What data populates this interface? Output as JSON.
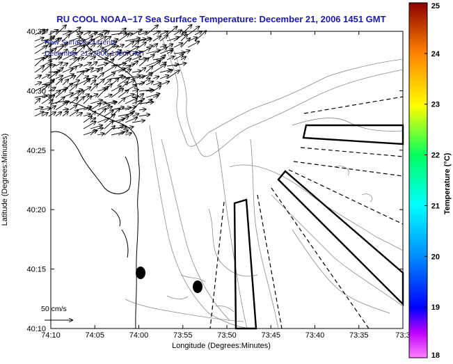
{
  "title": "RU COOL  NOAA−17  Sea Surface Temperature:  December 21, 2006 1451 GMT",
  "overlay": {
    "line1": "Raw Surface Currents",
    "line2": "December 21, 2006 1400 GMT"
  },
  "axes": {
    "xlabel": "Longitude (Degrees:Minutes)",
    "ylabel": "Latitude (Degrees:Minutes)",
    "x_ticks": [
      "74:10",
      "74:05",
      "74:00",
      "73:55",
      "73:50",
      "73:45",
      "73:40",
      "73:35",
      "73:3"
    ],
    "y_ticks": [
      "40:35",
      "40:30",
      "40:25",
      "40:20",
      "40:15",
      "40:10"
    ]
  },
  "scale": {
    "label": "50 cm/s"
  },
  "colorbar": {
    "label": "Temperature (°C)",
    "ticks": [
      "25",
      "24",
      "23",
      "22",
      "21",
      "20",
      "19",
      "18"
    ],
    "range": [
      18,
      25
    ]
  },
  "colors": {
    "title": "#1a1aa8",
    "overlay_text": "#1a1aa8",
    "coast": "#000000",
    "contour": "#8c8c8c"
  }
}
